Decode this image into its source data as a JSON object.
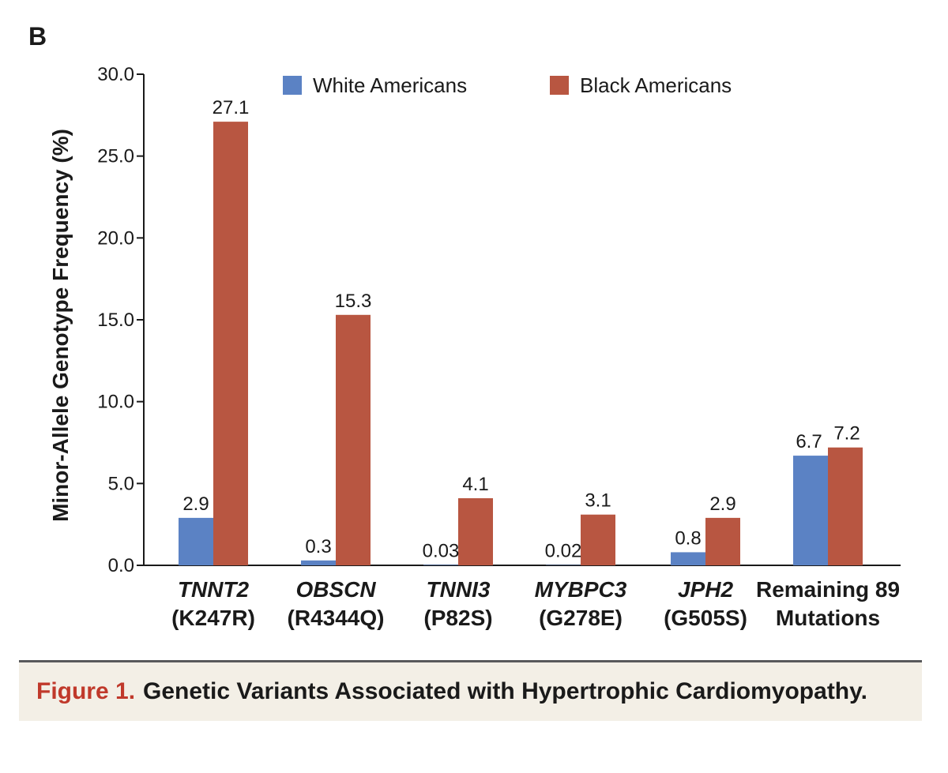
{
  "panel_label": "B",
  "caption": {
    "label": "Figure 1.",
    "text": "Genetic Variants Associated with Hypertrophic Cardiomyopathy."
  },
  "colors": {
    "white_americans": "#5b82c4",
    "black_americans": "#b85641",
    "caption_bg": "#f3efe6",
    "caption_label": "#c0392b"
  },
  "chart_data": {
    "type": "bar",
    "ylabel": "Minor-Allele Genotype Frequency (%)",
    "ylim": [
      0,
      30
    ],
    "yticks": [
      "0.0",
      "5.0",
      "10.0",
      "15.0",
      "20.0",
      "25.0",
      "30.0"
    ],
    "grid": false,
    "legend_position": "top",
    "categories": [
      {
        "name": "TNNT2",
        "sub": "(K247R)",
        "italic": true
      },
      {
        "name": "OBSCN",
        "sub": "(R4344Q)",
        "italic": true
      },
      {
        "name": "TNNI3",
        "sub": "(P82S)",
        "italic": true
      },
      {
        "name": "MYBPC3",
        "sub": "(G278E)",
        "italic": true
      },
      {
        "name": "JPH2",
        "sub": "(G505S)",
        "italic": true
      },
      {
        "name": "Remaining 89",
        "sub": "Mutations",
        "italic": false
      }
    ],
    "series": [
      {
        "name": "White Americans",
        "values": [
          2.9,
          0.3,
          0.03,
          0.02,
          0.8,
          6.7
        ],
        "labels": [
          "2.9",
          "0.3",
          "0.03",
          "0.02",
          "0.8",
          "6.7"
        ]
      },
      {
        "name": "Black Americans",
        "values": [
          27.1,
          15.3,
          4.1,
          3.1,
          2.9,
          7.2
        ],
        "labels": [
          "27.1",
          "15.3",
          "4.1",
          "3.1",
          "2.9",
          "7.2"
        ]
      }
    ]
  }
}
